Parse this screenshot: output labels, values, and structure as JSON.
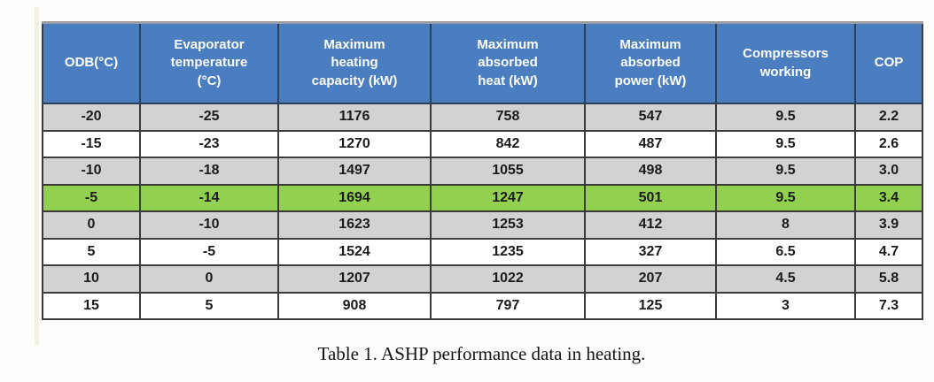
{
  "table": {
    "columns": [
      "ODB(°C)",
      "Evaporator\ntemperature\n(°C)",
      "Maximum\nheating\ncapacity (kW)",
      "Maximum\nabsorbed\nheat (kW)",
      "Maximum\nabsorbed\npower (kW)",
      "Compressors\nworking",
      "COP"
    ],
    "column_names": [
      "odb",
      "evaporator-temperature",
      "max-heating-capacity",
      "max-absorbed-heat",
      "max-absorbed-power",
      "compressors-working",
      "cop"
    ],
    "rows": [
      {
        "shade": "gray",
        "values": [
          "-20",
          "-25",
          "1176",
          "758",
          "547",
          "9.5",
          "2.2"
        ]
      },
      {
        "shade": "white",
        "values": [
          "-15",
          "-23",
          "1270",
          "842",
          "487",
          "9.5",
          "2.6"
        ]
      },
      {
        "shade": "gray",
        "values": [
          "-10",
          "-18",
          "1497",
          "1055",
          "498",
          "9.5",
          "3.0"
        ]
      },
      {
        "shade": "green",
        "values": [
          "-5",
          "-14",
          "1694",
          "1247",
          "501",
          "9.5",
          "3.4"
        ]
      },
      {
        "shade": "gray",
        "values": [
          "0",
          "-10",
          "1623",
          "1253",
          "412",
          "8",
          "3.9"
        ]
      },
      {
        "shade": "white",
        "values": [
          "5",
          "-5",
          "1524",
          "1235",
          "327",
          "6.5",
          "4.7"
        ]
      },
      {
        "shade": "gray",
        "values": [
          "10",
          "0",
          "1207",
          "1022",
          "207",
          "4.5",
          "5.8"
        ]
      },
      {
        "shade": "white",
        "values": [
          "15",
          "5",
          "908",
          "797",
          "125",
          "3",
          "7.3"
        ]
      }
    ]
  },
  "caption": "Table 1. ASHP performance data in heating.",
  "colors": {
    "header_bg": "#4b7ec0",
    "header_text": "#ffffff",
    "row_gray": "#d2d2d2",
    "row_white": "#ffffff",
    "row_green_highlight": "#92d050",
    "border": "#3b3b3b"
  }
}
